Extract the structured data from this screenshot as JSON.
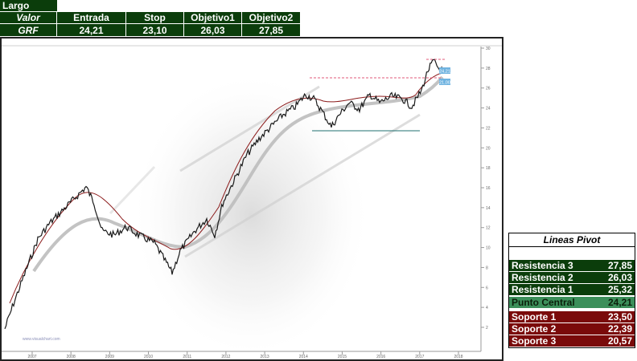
{
  "trade": {
    "direction": "Largo",
    "header_label": "Valor",
    "ticker": "GRF",
    "columns": [
      "Entrada",
      "Stop",
      "Objetivo1",
      "Objetivo2"
    ],
    "values": [
      "24,21",
      "23,10",
      "26,03",
      "27,85"
    ]
  },
  "chart": {
    "watermark": "www.visualchart.com",
    "x_ticks": [
      "2007",
      "2008",
      "2009",
      "2010",
      "2011",
      "2012",
      "2013",
      "2014",
      "2015",
      "2016",
      "2017",
      "2018"
    ],
    "y_ticks": [
      "30",
      "28",
      "26",
      "24",
      "22",
      "20",
      "18",
      "16",
      "14",
      "12",
      "10",
      "8",
      "6",
      "4",
      "2"
    ],
    "price_tag_1": "24,21",
    "price_tag_2": "21,00",
    "colors": {
      "price_line": "#1a1a1a",
      "ma_short": "#8b1a1a",
      "ma_long": "#bdbdbd",
      "resistance_dashed": "#e05a7a",
      "support_line": "#1f6f6f",
      "channel": "#cccccc"
    }
  },
  "pivot": {
    "title": "Lineas Pivot",
    "rows": [
      {
        "label": "Resistencia 3",
        "value": "27,85",
        "kind": "res"
      },
      {
        "label": "Resistencia 2",
        "value": "26,03",
        "kind": "res"
      },
      {
        "label": "Resistencia 1",
        "value": "25,32",
        "kind": "res"
      },
      {
        "label": "Punto Central",
        "value": "24,21",
        "kind": "piv"
      },
      {
        "label": "Soporte 1",
        "value": "23,50",
        "kind": "sup"
      },
      {
        "label": "Soporte 2",
        "value": "22,39",
        "kind": "sup"
      },
      {
        "label": "Soporte 3",
        "value": "20,57",
        "kind": "sup"
      }
    ]
  }
}
